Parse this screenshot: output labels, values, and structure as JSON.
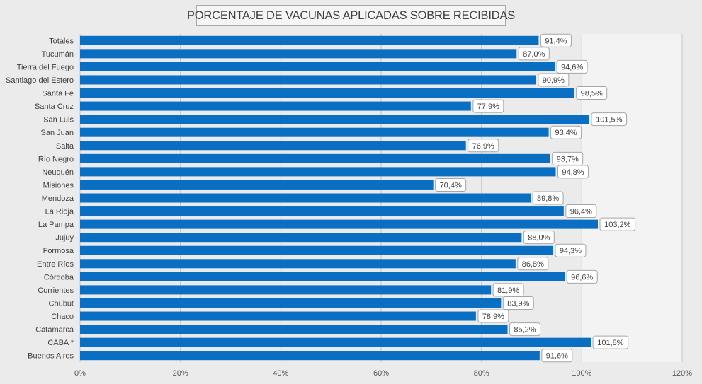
{
  "chart_data": {
    "type": "bar",
    "orientation": "horizontal",
    "title": "PORCENTAJE DE VACUNAS APLICADAS SOBRE RECIBIDAS",
    "xlim": [
      0,
      120
    ],
    "x_ticks": [
      0,
      20,
      40,
      60,
      80,
      100,
      120
    ],
    "x_tick_labels": [
      "0%",
      "20%",
      "40%",
      "60%",
      "80%",
      "100%",
      "120%"
    ],
    "categories": [
      "Totales",
      "Tucumán",
      "Tierra del Fuego",
      "Santiago del Estero",
      "Santa Fe",
      "Santa Cruz",
      "San Luis",
      "San Juan",
      "Salta",
      "Río Negro",
      "Neuquén",
      "Misiones",
      "Mendoza",
      "La Rioja",
      "La Pampa",
      "Jujuy",
      "Formosa",
      "Entre Ríos",
      "Córdoba",
      "Corrientes",
      "Chubut",
      "Chaco",
      "Catamarca",
      "CABA *",
      "Buenos Aires"
    ],
    "values": [
      91.4,
      87.0,
      94.6,
      90.9,
      98.5,
      77.9,
      101.5,
      93.4,
      76.9,
      93.7,
      94.8,
      70.4,
      89.8,
      96.4,
      103.2,
      88.0,
      94.3,
      86.8,
      96.6,
      81.9,
      83.9,
      78.9,
      85.2,
      101.8,
      91.6
    ],
    "data_labels": [
      "91,4%",
      "87,0%",
      "94,6%",
      "90,9%",
      "98,5%",
      "77,9%",
      "101,5%",
      "93,4%",
      "76,9%",
      "93,7%",
      "94,8%",
      "70,4%",
      "89,8%",
      "96,4%",
      "103,2%",
      "88,0%",
      "94,3%",
      "86,8%",
      "96,6%",
      "81,9%",
      "83,9%",
      "78,9%",
      "85,2%",
      "101,8%",
      "91,6%"
    ],
    "bar_color": "#0a6fc2",
    "shaded_range": [
      100,
      120
    ],
    "grid": true
  }
}
